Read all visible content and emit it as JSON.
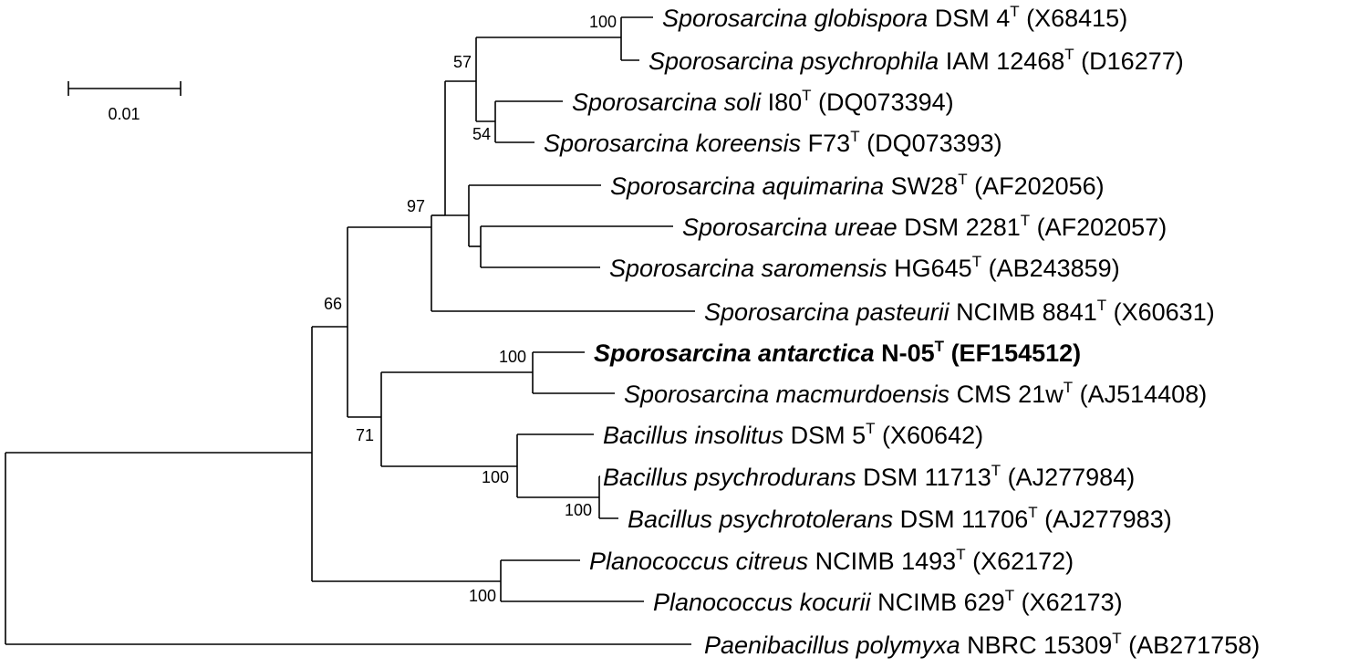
{
  "scale_bar": {
    "label": "0.01"
  },
  "taxa": [
    {
      "id": "t1",
      "genus": "Sporosarcina",
      "species": "globispora",
      "strain": "DSM 4",
      "accession": "(X68415)",
      "bold": false
    },
    {
      "id": "t2",
      "genus": "Sporosarcina",
      "species": "psychrophila",
      "strain": "IAM 12468",
      "accession": "(D16277)",
      "bold": false
    },
    {
      "id": "t3",
      "genus": "Sporosarcina",
      "species": "soli",
      "strain": "I80",
      "accession": "(DQ073394)",
      "bold": false
    },
    {
      "id": "t4",
      "genus": "Sporosarcina",
      "species": "koreensis",
      "strain": "F73",
      "accession": "(DQ073393)",
      "bold": false
    },
    {
      "id": "t5",
      "genus": "Sporosarcina",
      "species": "aquimarina",
      "strain": "SW28",
      "accession": "(AF202056)",
      "bold": false
    },
    {
      "id": "t6",
      "genus": "Sporosarcina",
      "species": "ureae",
      "strain": "DSM 2281",
      "accession": "(AF202057)",
      "bold": false
    },
    {
      "id": "t7",
      "genus": "Sporosarcina",
      "species": "saromensis",
      "strain": "HG645",
      "accession": "(AB243859)",
      "bold": false
    },
    {
      "id": "t8",
      "genus": "Sporosarcina",
      "species": "pasteurii",
      "strain": "NCIMB 8841",
      "accession": "(X60631)",
      "bold": false
    },
    {
      "id": "t9",
      "genus": "Sporosarcina",
      "species": "antarctica",
      "strain": "N-05",
      "accession": "(EF154512)",
      "bold": true
    },
    {
      "id": "t10",
      "genus": "Sporosarcina",
      "species": "macmurdoensis",
      "strain": "CMS 21w",
      "accession": "(AJ514408)",
      "bold": false
    },
    {
      "id": "t11",
      "genus": "Bacillus",
      "species": "insolitus",
      "strain": "DSM 5",
      "accession": "(X60642)",
      "bold": false
    },
    {
      "id": "t12",
      "genus": "Bacillus",
      "species": "psychrodurans",
      "strain": "DSM 11713",
      "accession": "(AJ277984)",
      "bold": false
    },
    {
      "id": "t13",
      "genus": "Bacillus",
      "species": "psychrotolerans",
      "strain": "DSM 11706",
      "accession": "(AJ277983)",
      "bold": false
    },
    {
      "id": "t14",
      "genus": "Planococcus",
      "species": "citreus",
      "strain": "NCIMB 1493",
      "accession": "(X62172)",
      "bold": false
    },
    {
      "id": "t15",
      "genus": "Planococcus",
      "species": "kocurii",
      "strain": "NCIMB 629",
      "accession": "(X62173)",
      "bold": false
    },
    {
      "id": "t16",
      "genus": "Paenibacillus",
      "species": "polymyxa",
      "strain": "NBRC 15309",
      "accession": "(AB271758)",
      "bold": false
    }
  ],
  "type_strain_mark": "T",
  "bootstrap": {
    "globispora_psychrophila": "100",
    "clade_57": "57",
    "soli_koreensis": "54",
    "clade_97": "97",
    "clade_66": "66",
    "antarctica_macmurdoensis": "100",
    "clade_71": "71",
    "bacillus_clade": "100",
    "psychrodurans_psychrotolerans": "100",
    "planococcus_clade": "100"
  }
}
